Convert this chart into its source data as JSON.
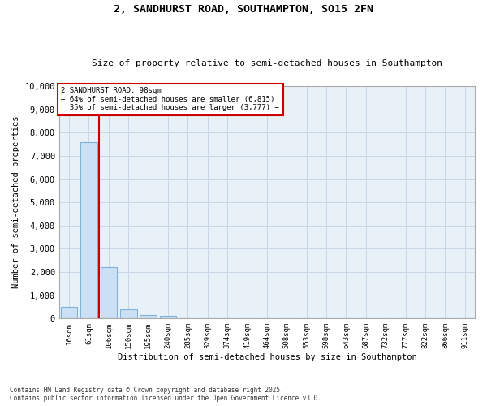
{
  "title_line1": "2, SANDHURST ROAD, SOUTHAMPTON, SO15 2FN",
  "title_line2": "Size of property relative to semi-detached houses in Southampton",
  "xlabel": "Distribution of semi-detached houses by size in Southampton",
  "ylabel": "Number of semi-detached properties",
  "categories": [
    "16sqm",
    "61sqm",
    "106sqm",
    "150sqm",
    "195sqm",
    "240sqm",
    "285sqm",
    "329sqm",
    "374sqm",
    "419sqm",
    "464sqm",
    "508sqm",
    "553sqm",
    "598sqm",
    "643sqm",
    "687sqm",
    "732sqm",
    "777sqm",
    "822sqm",
    "866sqm",
    "911sqm"
  ],
  "values": [
    500,
    7600,
    2200,
    380,
    140,
    100,
    20,
    5,
    5,
    3,
    2,
    1,
    1,
    0,
    0,
    0,
    0,
    0,
    0,
    0,
    0
  ],
  "bar_color": "#cce0f5",
  "bar_edge_color": "#7fb3d8",
  "property_size": "98sqm",
  "property_name": "2 SANDHURST ROAD",
  "pct_smaller": 64,
  "n_smaller": 6815,
  "pct_larger": 35,
  "n_larger": 3777,
  "annotation_box_color": "#ffffff",
  "annotation_box_edge": "#cc0000",
  "red_line_color": "#cc0000",
  "grid_color": "#c8d8e8",
  "background_color": "#e8f0f8",
  "ylim": [
    0,
    10000
  ],
  "yticks": [
    0,
    1000,
    2000,
    3000,
    4000,
    5000,
    6000,
    7000,
    8000,
    9000,
    10000
  ],
  "footer_line1": "Contains HM Land Registry data © Crown copyright and database right 2025.",
  "footer_line2": "Contains public sector information licensed under the Open Government Licence v3.0."
}
